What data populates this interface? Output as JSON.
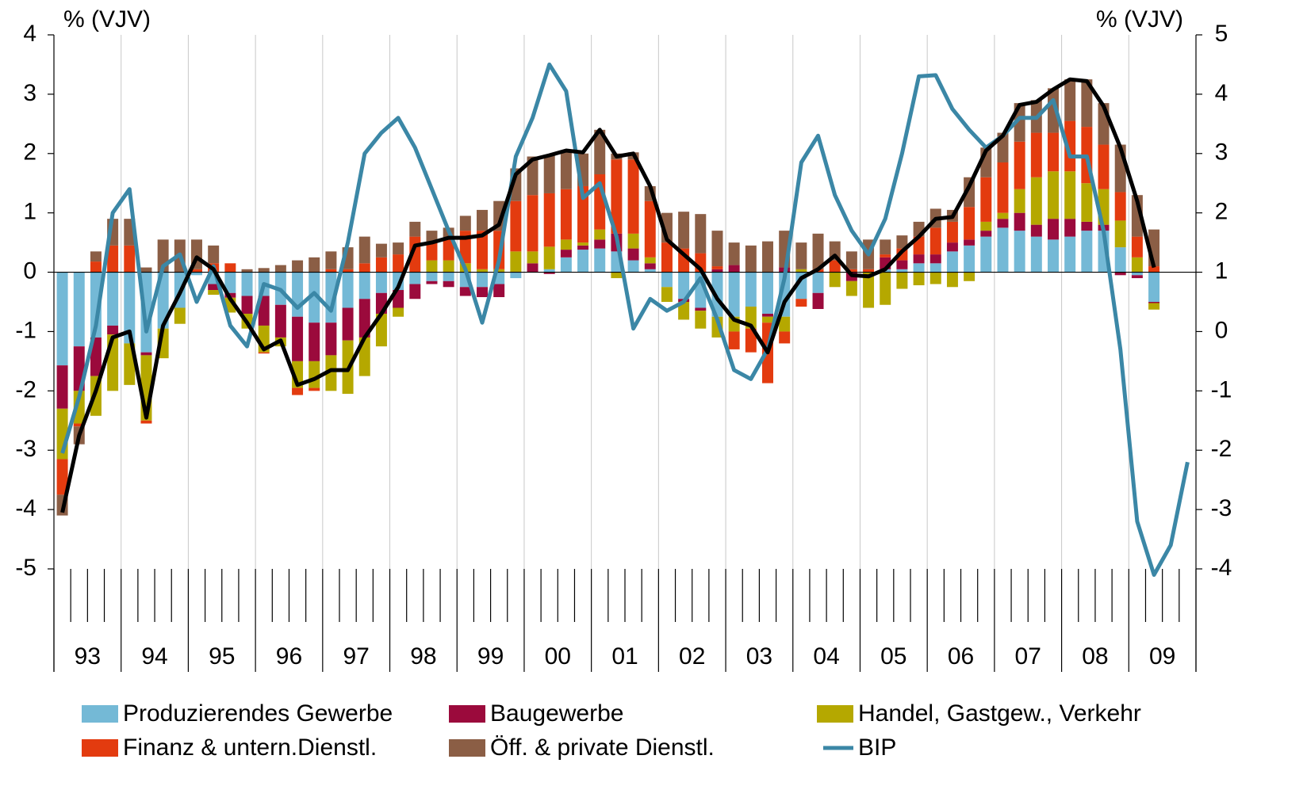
{
  "chart_data": {
    "type": "bar",
    "y_label": "% (VJV)",
    "y2_label": "% (VJV)",
    "categories": [
      null,
      "93",
      null,
      null,
      null,
      "94",
      null,
      null,
      null,
      "95",
      null,
      null,
      null,
      "96",
      null,
      null,
      null,
      "97",
      null,
      null,
      null,
      "98",
      null,
      null,
      null,
      "99",
      null,
      null,
      null,
      "00",
      null,
      null,
      null,
      "01",
      null,
      null,
      null,
      "02",
      null,
      null,
      null,
      "03",
      null,
      null,
      null,
      "04",
      null,
      null,
      null,
      "05",
      null,
      null,
      null,
      "06",
      null,
      null,
      null,
      "07",
      null,
      null,
      null,
      "08",
      null,
      null,
      null,
      "09",
      null,
      null
    ],
    "ylim": [
      -5,
      4
    ],
    "yticks": [
      -5,
      -4,
      -3,
      -2,
      -1,
      0,
      1,
      2,
      3,
      4
    ],
    "y2lim": [
      -4,
      5
    ],
    "y2ticks": [
      -4,
      -3,
      -2,
      -1,
      0,
      1,
      2,
      3,
      4,
      5
    ],
    "y2_color": "#3b87a6",
    "stacked": true,
    "series": [
      {
        "name": "Produzierendes Gewerbe",
        "type": "bar",
        "color": "#74b9d6",
        "values": [
          -1.57,
          -1.25,
          -1.1,
          -0.9,
          -1.2,
          -1.35,
          -0.95,
          -0.6,
          -0.05,
          -0.2,
          -0.35,
          -0.4,
          -0.4,
          -0.55,
          -0.75,
          -0.85,
          -0.85,
          -0.6,
          -0.45,
          -0.35,
          -0.3,
          -0.2,
          -0.15,
          -0.15,
          -0.25,
          -0.25,
          -0.2,
          -0.1,
          0,
          0.05,
          0.25,
          0.38,
          0.4,
          0.35,
          0.2,
          0.05,
          -0.25,
          -0.45,
          -0.6,
          -0.75,
          -0.75,
          -0.58,
          -0.7,
          -0.75,
          -0.45,
          -0.35,
          0,
          0,
          0,
          0.05,
          0.05,
          0.15,
          0.15,
          0.35,
          0.45,
          0.6,
          0.75,
          0.7,
          0.6,
          0.55,
          0.6,
          0.7,
          0.7,
          0.42,
          -0.05,
          -0.5,
          null,
          null
        ]
      },
      {
        "name": "Baugewerbe",
        "type": "bar",
        "color": "#9b0a3c",
        "values": [
          -0.73,
          -0.75,
          -0.65,
          -0.15,
          0,
          -0.05,
          0,
          0,
          0,
          -0.1,
          -0.08,
          -0.3,
          -0.5,
          -0.55,
          -0.75,
          -0.65,
          -0.55,
          -0.55,
          -0.65,
          -0.35,
          -0.3,
          -0.25,
          -0.05,
          -0.1,
          -0.15,
          -0.17,
          -0.22,
          0,
          0.15,
          -0.03,
          0.13,
          0.07,
          0.15,
          0.3,
          0.2,
          0.1,
          0,
          -0.05,
          -0.05,
          0.05,
          0.12,
          0,
          -0.05,
          0.08,
          0,
          -0.27,
          0,
          -0.15,
          0,
          0.2,
          0.15,
          0.15,
          0.15,
          0.15,
          0.1,
          0.1,
          0.15,
          0.3,
          0.2,
          0.35,
          0.3,
          0.15,
          0.1,
          -0.05,
          -0.05,
          -0.02,
          null,
          null
        ]
      },
      {
        "name": "Handel, Gastgew., Verkehr",
        "type": "bar",
        "color": "#b5a800",
        "values": [
          -0.85,
          -0.55,
          -0.67,
          -0.95,
          -0.7,
          -1.1,
          -0.5,
          -0.27,
          0,
          -0.08,
          -0.25,
          -0.25,
          -0.45,
          -0.15,
          -0.45,
          -0.45,
          -0.6,
          -0.9,
          -0.65,
          -0.55,
          -0.15,
          0,
          0.2,
          0.2,
          0.15,
          0.05,
          0.05,
          0.35,
          0.2,
          0.38,
          0.17,
          0.05,
          0.17,
          -0.1,
          0.25,
          0.1,
          -0.25,
          -0.3,
          -0.3,
          -0.35,
          -0.25,
          -0.37,
          -0.1,
          -0.25,
          0.05,
          0,
          -0.25,
          -0.25,
          -0.6,
          -0.55,
          -0.28,
          -0.22,
          -0.2,
          -0.25,
          -0.15,
          0.15,
          0.1,
          0.4,
          0.8,
          0.8,
          0.8,
          0.65,
          0.6,
          0.45,
          0.25,
          -0.11,
          null,
          null
        ]
      },
      {
        "name": "Finanz & untern.Dienstl.",
        "type": "bar",
        "color": "#e33b0f",
        "values": [
          -0.6,
          -0.05,
          0.18,
          0.45,
          0.45,
          -0.05,
          0,
          0,
          0.05,
          0.15,
          0.15,
          0,
          -0.02,
          0,
          -0.12,
          -0.05,
          0.05,
          0.05,
          0.15,
          0.25,
          0.3,
          0.6,
          0.3,
          0.35,
          0.55,
          0.65,
          0.65,
          0.85,
          0.95,
          0.9,
          0.85,
          0.95,
          0.93,
          1.25,
          1.25,
          0.95,
          0.5,
          0.4,
          0.32,
          0.05,
          -0.3,
          -0.4,
          -1.02,
          -0.2,
          -0.13,
          0.05,
          0.2,
          0.05,
          0.05,
          0.05,
          0.2,
          0.3,
          0.45,
          0.35,
          0.55,
          0.75,
          0.85,
          0.8,
          0.75,
          0.65,
          0.85,
          0.95,
          0.75,
          0.48,
          0.35,
          0.1,
          null,
          null
        ]
      },
      {
        "name": "Öff. & private Dienstl.",
        "type": "bar",
        "color": "#8b5e45",
        "values": [
          -0.35,
          -0.3,
          0.17,
          0.45,
          0.45,
          0.08,
          0.55,
          0.55,
          0.5,
          0.3,
          0,
          0.05,
          0.07,
          0.12,
          0.2,
          0.25,
          0.3,
          0.37,
          0.45,
          0.23,
          0.2,
          0.25,
          0.2,
          0.2,
          0.25,
          0.35,
          0.5,
          0.55,
          0.65,
          0.65,
          0.65,
          0.55,
          0.75,
          0.1,
          0.12,
          0.25,
          0.5,
          0.62,
          0.66,
          0.6,
          0.38,
          0.45,
          0.52,
          0.62,
          0.45,
          0.6,
          0.32,
          0.3,
          0.5,
          0.25,
          0.22,
          0.25,
          0.32,
          0.2,
          0.5,
          0.5,
          0.5,
          0.65,
          0.55,
          0.75,
          0.7,
          0.8,
          0.7,
          0.8,
          0.7,
          0.62,
          null,
          null
        ]
      },
      {
        "name": "BIP",
        "type": "line",
        "axis": "y2",
        "color": "#3b87a6",
        "values": [
          -2.05,
          -1.1,
          0.1,
          2.0,
          2.4,
          0.0,
          1.1,
          1.3,
          0.5,
          1.1,
          0.1,
          -0.25,
          0.8,
          0.7,
          0.4,
          0.65,
          0.35,
          1.5,
          3.0,
          3.35,
          3.6,
          3.1,
          2.4,
          1.7,
          1.05,
          0.15,
          1.2,
          2.95,
          3.6,
          4.5,
          4.05,
          2.25,
          2.5,
          1.6,
          0.05,
          0.55,
          0.35,
          0.5,
          0.9,
          0.2,
          -0.65,
          -0.8,
          -0.3,
          0.9,
          2.85,
          3.3,
          2.3,
          1.7,
          1.3,
          1.9,
          3.0,
          4.3,
          4.32,
          3.75,
          3.4,
          3.1,
          3.3,
          3.6,
          3.6,
          3.9,
          2.95,
          2.95,
          1.7,
          -0.3,
          -3.2,
          -4.1,
          -3.6,
          -2.2
        ]
      },
      {
        "type": "line",
        "color": "#000000",
        "values": [
          -4.05,
          -2.75,
          -2.0,
          -1.1,
          -1.0,
          -2.45,
          -0.9,
          -0.35,
          0.25,
          0.05,
          -0.45,
          -0.85,
          -1.3,
          -1.15,
          -1.9,
          -1.8,
          -1.65,
          -1.65,
          -1.1,
          -0.7,
          -0.25,
          0.45,
          0.5,
          0.58,
          0.58,
          0.62,
          0.8,
          1.65,
          1.9,
          1.97,
          2.05,
          2.02,
          2.4,
          1.95,
          2.0,
          1.45,
          0.55,
          0.3,
          0.05,
          -0.45,
          -0.8,
          -0.9,
          -1.35,
          -0.5,
          -0.1,
          0.05,
          0.28,
          -0.05,
          -0.07,
          0.05,
          0.35,
          0.6,
          0.9,
          0.93,
          1.45,
          2.05,
          2.3,
          2.82,
          2.87,
          3.08,
          3.25,
          3.22,
          2.8,
          2.1,
          1.2,
          0.08,
          null,
          null
        ]
      }
    ]
  }
}
